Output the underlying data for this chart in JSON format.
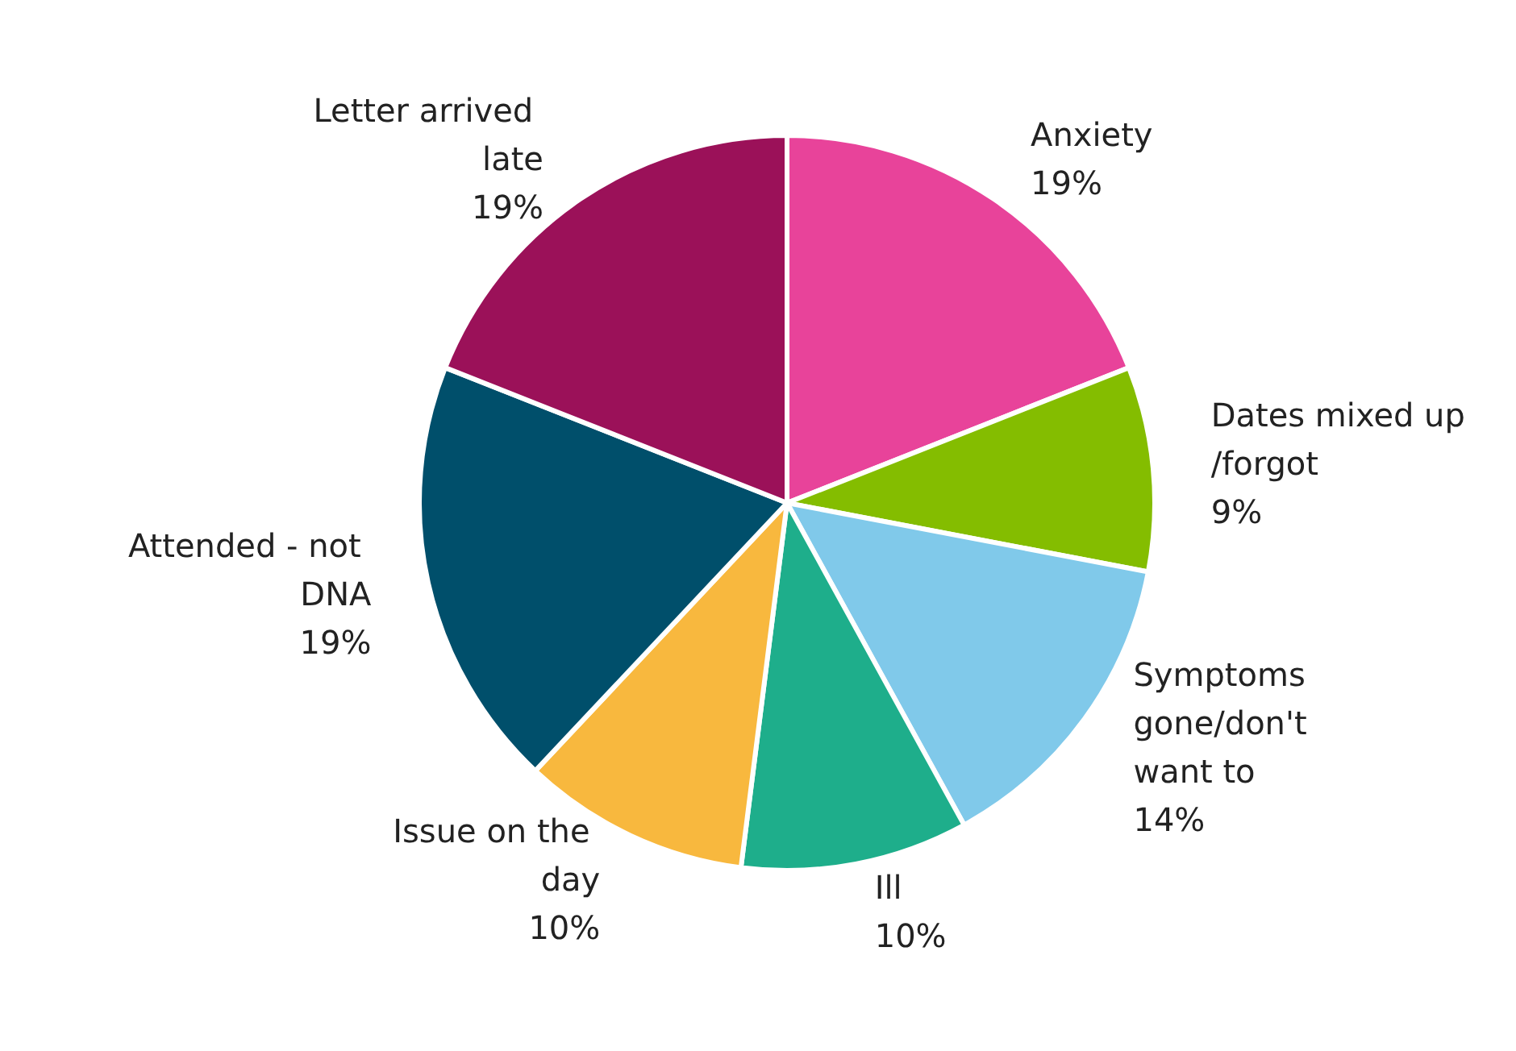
{
  "chart_data": {
    "type": "pie",
    "categories": [
      "Anxiety",
      "Dates mixed up/forgot",
      "Symptoms gone/don't want to",
      "Ill",
      "Issue on the day",
      "Attended - not DNA",
      "Letter arrived late"
    ],
    "values": [
      19,
      9,
      14,
      10,
      10,
      19,
      19
    ],
    "colors": [
      "#e8439a",
      "#84bd00",
      "#80c9ea",
      "#1eae8b",
      "#f8b83e",
      "#004f6b",
      "#9b1159"
    ],
    "value_labels": [
      "19%",
      "9%",
      "14%",
      "10%",
      "10%",
      "19%",
      "19%"
    ],
    "legend": false
  }
}
